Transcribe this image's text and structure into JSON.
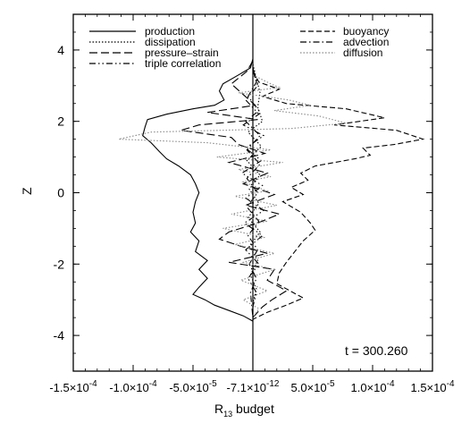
{
  "chart_data": {
    "type": "line",
    "xlabel_main": "R",
    "xlabel_sub": "13",
    "xlabel_rest": " budget",
    "ylabel": "Z",
    "annotation": "t = 300.260",
    "xlim": [
      -0.00015,
      0.00015
    ],
    "ylim": [
      -5,
      5
    ],
    "x_ticks": [
      {
        "value": -0.00015,
        "mant": "-1.5×10",
        "exp": "-4"
      },
      {
        "value": -0.0001,
        "mant": "-1.0×10",
        "exp": "-4"
      },
      {
        "value": -5e-05,
        "mant": "-5.0×10",
        "exp": "-5"
      },
      {
        "value": 0,
        "mant": "-7.1×10",
        "exp": "-12"
      },
      {
        "value": 5e-05,
        "mant": "5.0×10",
        "exp": "-5"
      },
      {
        "value": 0.0001,
        "mant": "1.0×10",
        "exp": "-4"
      },
      {
        "value": 0.00015,
        "mant": "1.5×10",
        "exp": "-4"
      }
    ],
    "y_ticks": [
      -4,
      -2,
      0,
      2,
      4
    ],
    "legend_placement": "top",
    "series": [
      {
        "name": "production",
        "dash": "",
        "points": [
          [
            0,
            3.75
          ],
          [
            -2e-06,
            3.5
          ],
          [
            -1.2e-05,
            3.3
          ],
          [
            -2.5e-05,
            3.05
          ],
          [
            -2.8e-05,
            2.85
          ],
          [
            -2.4e-05,
            2.6
          ],
          [
            -3.2e-05,
            2.45
          ],
          [
            -5e-05,
            2.35
          ],
          [
            -7.2e-05,
            2.2
          ],
          [
            -8.8e-05,
            2.05
          ],
          [
            -9e-05,
            1.85
          ],
          [
            -9.2e-05,
            1.6
          ],
          [
            -8.5e-05,
            1.4
          ],
          [
            -7.8e-05,
            1.15
          ],
          [
            -7.2e-05,
            0.95
          ],
          [
            -6.2e-05,
            0.75
          ],
          [
            -5.2e-05,
            0.5
          ],
          [
            -4.8e-05,
            0.25
          ],
          [
            -4.5e-05,
            0.0
          ],
          [
            -4.8e-05,
            -0.25
          ],
          [
            -5e-05,
            -0.55
          ],
          [
            -4.8e-05,
            -0.85
          ],
          [
            -5.2e-05,
            -1.1
          ],
          [
            -4.5e-05,
            -1.35
          ],
          [
            -4.8e-05,
            -1.65
          ],
          [
            -3.8e-05,
            -1.9
          ],
          [
            -4.5e-05,
            -2.15
          ],
          [
            -3.8e-05,
            -2.4
          ],
          [
            -4.5e-05,
            -2.65
          ],
          [
            -5e-05,
            -2.85
          ],
          [
            -4e-05,
            -3.0
          ],
          [
            -3.2e-05,
            -3.15
          ],
          [
            -2e-05,
            -3.3
          ],
          [
            -8e-06,
            -3.45
          ],
          [
            0,
            -3.6
          ]
        ]
      },
      {
        "name": "dissipation",
        "dash": "1.5 2",
        "points": [
          [
            0,
            3.6
          ],
          [
            3e-06,
            3.2
          ],
          [
            6e-06,
            2.8
          ],
          [
            4e-06,
            2.4
          ],
          [
            8e-06,
            2.0
          ],
          [
            -4e-06,
            1.7
          ],
          [
            7e-06,
            1.3
          ],
          [
            -5e-06,
            0.9
          ],
          [
            6e-06,
            0.5
          ],
          [
            -3e-06,
            0.1
          ],
          [
            5e-06,
            -0.3
          ],
          [
            -4e-06,
            -0.7
          ],
          [
            6e-06,
            -1.1
          ],
          [
            -3e-06,
            -1.5
          ],
          [
            4e-06,
            -1.9
          ],
          [
            -2e-06,
            -2.3
          ],
          [
            3e-06,
            -2.7
          ],
          [
            0,
            -3.1
          ],
          [
            0,
            -3.6
          ]
        ]
      },
      {
        "name": "pressure–strain",
        "dash": "9 4",
        "points": [
          [
            0,
            3.7
          ],
          [
            -5e-06,
            3.4
          ],
          [
            -1.8e-05,
            3.05
          ],
          [
            -8e-06,
            2.75
          ],
          [
            2e-06,
            2.45
          ],
          [
            -3.8e-05,
            2.25
          ],
          [
            4e-06,
            2.05
          ],
          [
            -4.5e-05,
            1.9
          ],
          [
            -6e-05,
            1.75
          ],
          [
            -1.8e-05,
            1.55
          ],
          [
            -1.2e-05,
            1.35
          ],
          [
            1e-05,
            1.1
          ],
          [
            -2e-05,
            0.85
          ],
          [
            1.2e-05,
            0.55
          ],
          [
            -8e-06,
            0.25
          ],
          [
            1.8e-05,
            -0.05
          ],
          [
            -6e-06,
            -0.35
          ],
          [
            2.2e-05,
            -0.6
          ],
          [
            4e-06,
            -0.85
          ],
          [
            -2e-05,
            -1.1
          ],
          [
            -2.8e-05,
            -1.3
          ],
          [
            -1e-05,
            -1.5
          ],
          [
            1.2e-05,
            -1.7
          ],
          [
            -2e-05,
            -1.95
          ],
          [
            1.8e-05,
            -2.15
          ],
          [
            1.2e-05,
            -2.45
          ],
          [
            2.8e-05,
            -2.75
          ],
          [
            1.6e-05,
            -3.0
          ],
          [
            8e-06,
            -3.2
          ],
          [
            0,
            -3.5
          ]
        ]
      },
      {
        "name": "triple correlation",
        "dash": "7 3 1.5 3 1.5 3",
        "points": [
          [
            0,
            3.4
          ],
          [
            4e-06,
            3.0
          ],
          [
            -6e-06,
            2.6
          ],
          [
            5e-06,
            2.2
          ],
          [
            -8e-06,
            1.9
          ],
          [
            9e-06,
            1.6
          ],
          [
            -6e-06,
            1.25
          ],
          [
            7e-06,
            0.9
          ],
          [
            -9e-06,
            0.55
          ],
          [
            8e-06,
            0.2
          ],
          [
            -6e-06,
            -0.15
          ],
          [
            9e-06,
            -0.5
          ],
          [
            -7e-06,
            -0.85
          ],
          [
            8e-06,
            -1.2
          ],
          [
            -6e-06,
            -1.6
          ],
          [
            5e-06,
            -2.0
          ],
          [
            -4e-06,
            -2.4
          ],
          [
            3e-06,
            -2.8
          ],
          [
            0,
            -3.2
          ],
          [
            0,
            -3.5
          ]
        ]
      },
      {
        "name": "buoyancy",
        "dash": "6 3",
        "points": [
          [
            0,
            3.4
          ],
          [
            5e-06,
            3.1
          ],
          [
            2.2e-05,
            2.9
          ],
          [
            8e-06,
            2.7
          ],
          [
            2.8e-05,
            2.5
          ],
          [
            7.8e-05,
            2.35
          ],
          [
            0.00011,
            2.1
          ],
          [
            6.8e-05,
            1.9
          ],
          [
            0.00012,
            1.75
          ],
          [
            0.000142,
            1.5
          ],
          [
            0.000118,
            1.35
          ],
          [
            9.2e-05,
            1.25
          ],
          [
            9.8e-05,
            1.05
          ],
          [
            8.5e-05,
            0.95
          ],
          [
            5.2e-05,
            0.75
          ],
          [
            4e-05,
            0.55
          ],
          [
            4.6e-05,
            0.35
          ],
          [
            3.2e-05,
            0.15
          ],
          [
            4.2e-05,
            -0.05
          ],
          [
            2.5e-05,
            -0.25
          ],
          [
            4e-05,
            -0.55
          ],
          [
            4.8e-05,
            -0.85
          ],
          [
            5.2e-05,
            -1.05
          ],
          [
            4.2e-05,
            -1.35
          ],
          [
            3.5e-05,
            -1.65
          ],
          [
            2.8e-05,
            -1.95
          ],
          [
            2.2e-05,
            -2.25
          ],
          [
            2e-05,
            -2.55
          ],
          [
            4.2e-05,
            -2.95
          ],
          [
            2.8e-05,
            -3.15
          ],
          [
            1.2e-05,
            -3.35
          ],
          [
            0,
            -3.55
          ]
        ]
      },
      {
        "name": "advection",
        "dash": "7 3 1.5 3",
        "points": [
          [
            0,
            3.5
          ],
          [
            3e-06,
            3.1
          ],
          [
            -4e-06,
            2.7
          ],
          [
            5e-06,
            2.3
          ],
          [
            -6e-06,
            2.0
          ],
          [
            6e-06,
            1.6
          ],
          [
            -5e-06,
            1.2
          ],
          [
            6e-06,
            0.8
          ],
          [
            -5e-06,
            0.4
          ],
          [
            4e-06,
            0.0
          ],
          [
            -5e-06,
            -0.4
          ],
          [
            5e-06,
            -0.8
          ],
          [
            -4e-06,
            -1.2
          ],
          [
            4e-06,
            -1.6
          ],
          [
            -3e-06,
            -2.0
          ],
          [
            3e-06,
            -2.4
          ],
          [
            -2e-06,
            -2.8
          ],
          [
            0,
            -3.5
          ]
        ]
      },
      {
        "name": "diffusion",
        "dash": "1.5 2",
        "color": "#8a8a8a",
        "points": [
          [
            0,
            3.3
          ],
          [
            1.5e-05,
            3.05
          ],
          [
            2.2e-05,
            2.95
          ],
          [
            -1.2e-05,
            2.8
          ],
          [
            3e-05,
            2.6
          ],
          [
            4.8e-05,
            2.45
          ],
          [
            1.8e-05,
            2.3
          ],
          [
            5.5e-05,
            2.15
          ],
          [
            7.8e-05,
            1.95
          ],
          [
            3.2e-05,
            1.8
          ],
          [
            -8.5e-05,
            1.7
          ],
          [
            -0.000112,
            1.5
          ],
          [
            -3.8e-05,
            1.4
          ],
          [
            1.5e-05,
            1.2
          ],
          [
            -3e-05,
            1.0
          ],
          [
            2.5e-05,
            0.85
          ],
          [
            -1.2e-05,
            0.65
          ],
          [
            1.5e-05,
            0.45
          ],
          [
            -8e-06,
            0.3
          ],
          [
            1.2e-05,
            0.05
          ],
          [
            -1.5e-05,
            -0.1
          ],
          [
            2e-05,
            -0.35
          ],
          [
            -1.8e-05,
            -0.6
          ],
          [
            1.2e-05,
            -0.8
          ],
          [
            -2.5e-05,
            -1.0
          ],
          [
            1e-05,
            -1.25
          ],
          [
            -1.5e-05,
            -1.45
          ],
          [
            1.8e-05,
            -1.7
          ],
          [
            -8e-06,
            -1.95
          ],
          [
            1.8e-05,
            -2.15
          ],
          [
            -1e-05,
            -2.45
          ],
          [
            1.2e-05,
            -2.75
          ],
          [
            -8e-06,
            -3.0
          ],
          [
            5e-06,
            -3.25
          ],
          [
            0,
            -3.5
          ]
        ]
      }
    ]
  }
}
